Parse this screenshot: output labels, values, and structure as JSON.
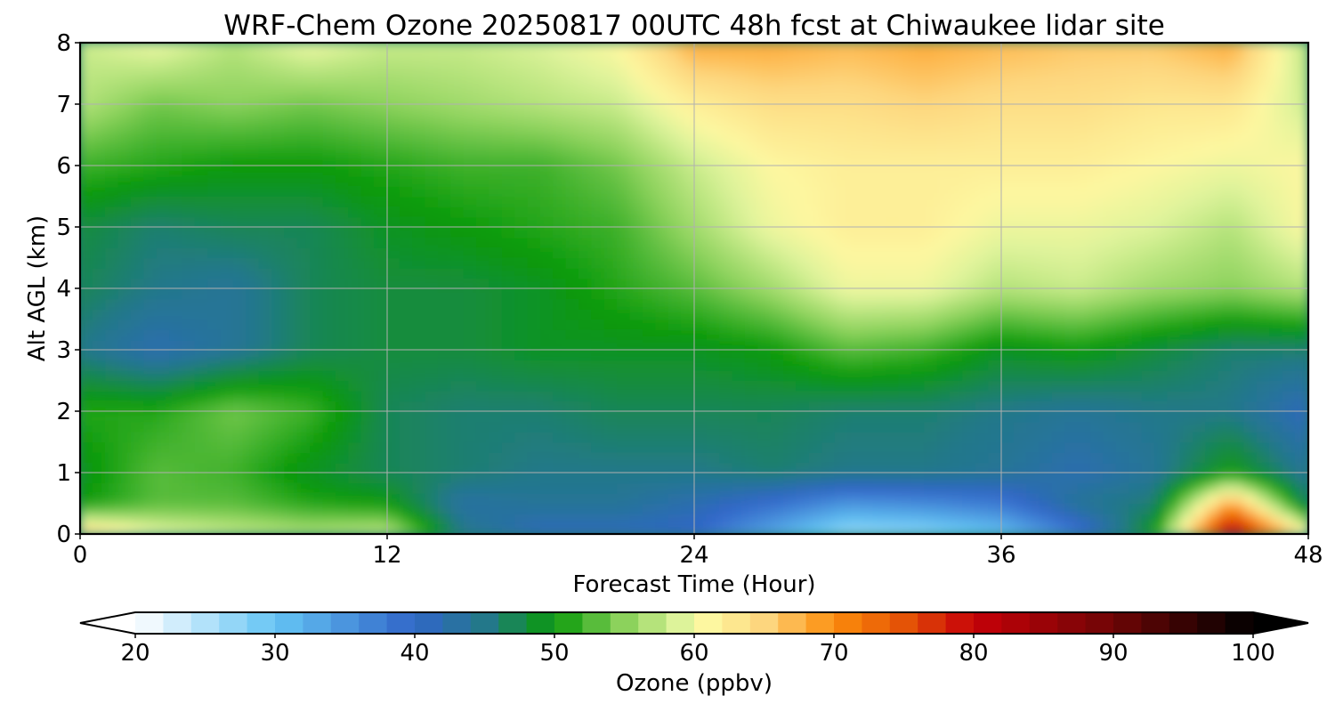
{
  "chart_data": {
    "type": "heatmap",
    "title": "WRF-Chem Ozone  20250817 00UTC 48h fcst at Chiwaukee lidar site",
    "xlabel": "Forecast Time (Hour)",
    "ylabel": "Alt AGL (km)",
    "xlim": [
      0,
      48
    ],
    "ylim": [
      0,
      8
    ],
    "x_ticks": [
      "0",
      "12",
      "24",
      "36",
      "48"
    ],
    "y_ticks": [
      "0",
      "1",
      "2",
      "3",
      "4",
      "5",
      "6",
      "7",
      "8"
    ],
    "grid": true,
    "x_hours": [
      0,
      3,
      6,
      9,
      12,
      15,
      18,
      21,
      24,
      27,
      30,
      33,
      36,
      39,
      42,
      45,
      48
    ],
    "y_km": [
      0,
      0.5,
      1,
      2,
      3,
      4,
      5,
      6,
      7,
      8
    ],
    "ozone_ppbv": [
      [
        66,
        60,
        58,
        57,
        58,
        45,
        41,
        41,
        40,
        33,
        26,
        27,
        30,
        38,
        50,
        84,
        62
      ],
      [
        50,
        53,
        53,
        51,
        50,
        43,
        44,
        44,
        42,
        39,
        35,
        36,
        38,
        44,
        46,
        69,
        46
      ],
      [
        49,
        53,
        52,
        49,
        47,
        46,
        45,
        45,
        45,
        46,
        45,
        45,
        44,
        42,
        44,
        50,
        44
      ],
      [
        51,
        51,
        54,
        52,
        47,
        46,
        46,
        47,
        47,
        47,
        46,
        46,
        45,
        44,
        45,
        45,
        41
      ],
      [
        45,
        42,
        44,
        47,
        48,
        48,
        49,
        49,
        49,
        50,
        53,
        52,
        49,
        50,
        48,
        46,
        46
      ],
      [
        47,
        45,
        44,
        47,
        48,
        48,
        49,
        51,
        53,
        56,
        60,
        60,
        57,
        58,
        56,
        55,
        57
      ],
      [
        48,
        46,
        47,
        47,
        49,
        50,
        51,
        52,
        56,
        60,
        62,
        62,
        60,
        60,
        59,
        57,
        61
      ],
      [
        52,
        51,
        50,
        50,
        51,
        52,
        52,
        54,
        58,
        61,
        62,
        62,
        62,
        62,
        61,
        60,
        61
      ],
      [
        57,
        54,
        55,
        54,
        55,
        56,
        57,
        58,
        62,
        64,
        64,
        65,
        64,
        64,
        63,
        63,
        58
      ],
      [
        58,
        60,
        57,
        60,
        58,
        58,
        59,
        61,
        68,
        68,
        67,
        68,
        67,
        66,
        66,
        68,
        57
      ]
    ],
    "colorbar": {
      "label": "Ozone  (ppbv)",
      "min": 20,
      "max": 100,
      "step": 2,
      "extend": "both",
      "ticks": [
        "20",
        "30",
        "40",
        "50",
        "60",
        "70",
        "80",
        "90",
        "100"
      ],
      "color_stops": [
        [
          20,
          "#ffffff"
        ],
        [
          30,
          "#64c4f4"
        ],
        [
          40,
          "#3166c8"
        ],
        [
          45,
          "#23788a"
        ],
        [
          50,
          "#0a9a0a"
        ],
        [
          55,
          "#8cd25c"
        ],
        [
          59,
          "#ddf39a"
        ],
        [
          61,
          "#fdf7a0"
        ],
        [
          65,
          "#fdd67e"
        ],
        [
          70,
          "#fc8d0c"
        ],
        [
          75,
          "#e45306"
        ],
        [
          80,
          "#c60008"
        ],
        [
          90,
          "#6e0606"
        ],
        [
          100,
          "#000000"
        ]
      ]
    }
  }
}
